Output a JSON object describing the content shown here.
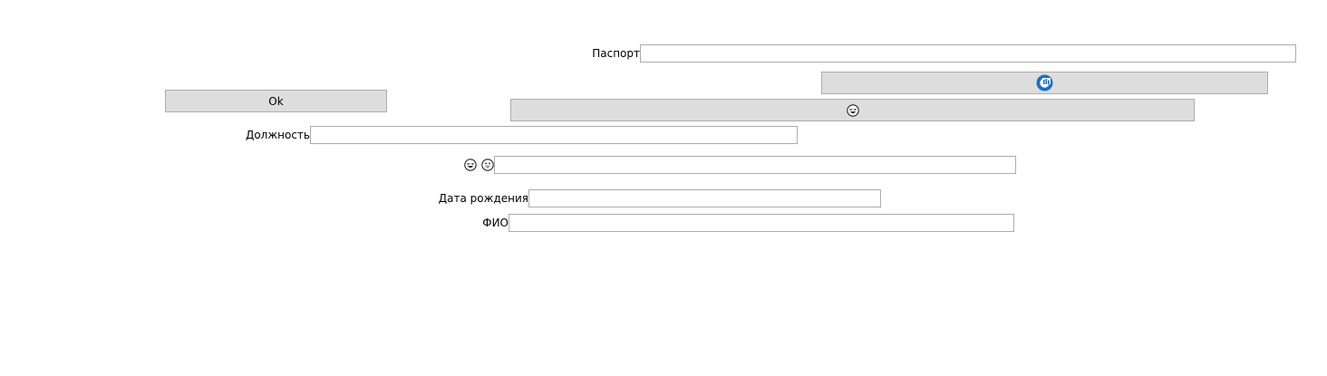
{
  "form": {
    "passport": {
      "label": "Паспорт",
      "value": ""
    },
    "refresh_button": {
      "icon": "refresh-logo-icon",
      "accent": "#1a6fc4"
    },
    "ok_button": {
      "label": "Ok"
    },
    "emoji_button": {
      "icon": "laughing-emoji-icon"
    },
    "position": {
      "label": "Должность",
      "value": ""
    },
    "emoji_field": {
      "icons": [
        "laughing-emoji-icon",
        "grinning-emoji-icon"
      ],
      "value": ""
    },
    "birth_date": {
      "label": "Дата рождения",
      "value": ""
    },
    "full_name": {
      "label": "ФИО",
      "value": ""
    }
  }
}
